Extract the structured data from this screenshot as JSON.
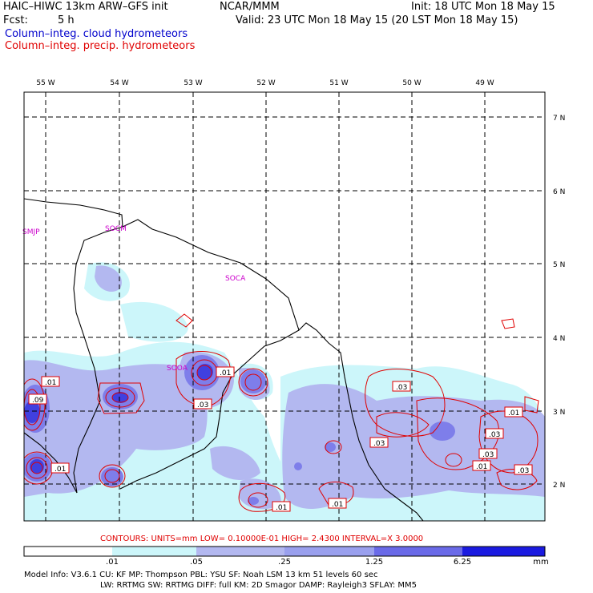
{
  "header": {
    "model": "HAIC–HIWC 13km ARW–GFS init",
    "org": "NCAR/MMM",
    "init": "Init: 18 UTC Mon 18 May 15",
    "fcst_label": "Fcst:",
    "fcst_value": "5 h",
    "valid": "Valid: 23 UTC Mon 18 May 15 (20 LST Mon 18 May 15)",
    "field_cloud": "Column–integ. cloud hydrometeors",
    "field_precip": "Column–integ. precip. hydrometeors"
  },
  "colors": {
    "cloud_text": "#0000cc",
    "precip_text": "#e00000",
    "contour": "#e00000",
    "station": "#cc00cc",
    "coast": "#000000",
    "fill_levels": [
      "#ffffff",
      "#ccf6fa",
      "#b3b8f0",
      "#9aa0ee",
      "#6a6ae8",
      "#3a3ae0",
      "#0000dd"
    ]
  },
  "map": {
    "lon_labels": [
      "55 W",
      "54 W",
      "53 W",
      "52 W",
      "51 W",
      "50 W",
      "49 W"
    ],
    "lat_labels": [
      "7 N",
      "6 N",
      "5 N",
      "4 N",
      "3 N",
      "2 N"
    ],
    "stations": [
      "SMJP",
      "SOCM",
      "SOCA",
      "SOOA"
    ],
    "contour_labels": [
      ".01",
      ".09",
      ".01",
      ".01",
      ".03",
      ".01",
      ".03",
      ".01",
      ".01",
      ".03",
      ".01",
      ".03",
      ".03",
      ".03"
    ]
  },
  "footer": {
    "contours_line": "CONTOURS:  UNITS=mm   LOW= 0.10000E-01   HIGH=  2.4300       INTERVAL=X  3.0000",
    "colorbar_labels": [
      ".01",
      ".05",
      ".25",
      "1.25",
      "6.25"
    ],
    "colorbar_unit": "mm",
    "model_info_1": "Model Info: V3.6.1     CU: KF       MP: Thompson     PBL: YSU        SF: Noah LSM     13 km    51 levels   60 sec",
    "model_info_2": "LW: RRTMG    SW: RRTMG   DIFF: full    KM: 2D Smagor  DAMP: Rayleigh3   SFLAY: MM5"
  }
}
